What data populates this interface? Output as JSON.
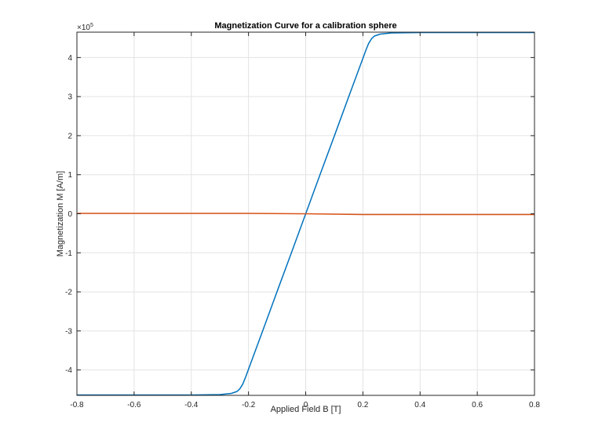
{
  "chart_data": {
    "type": "line",
    "title": "Magnetization Curve for a calibration sphere",
    "xlabel": "Applied Field B [T]",
    "ylabel": "Magnetization M [A/m]",
    "xlim": [
      -0.8,
      0.8
    ],
    "ylim": [
      -4.65,
      4.65
    ],
    "y_exponent_label": "×10",
    "y_exponent_power": "5",
    "grid": true,
    "xticks": [
      -0.8,
      -0.6,
      -0.4,
      -0.2,
      0,
      0.2,
      0.4,
      0.6,
      0.8
    ],
    "xtick_labels": [
      "-0.8",
      "-0.6",
      "-0.4",
      "-0.2",
      "0",
      "0.2",
      "0.4",
      "0.6",
      "0.8"
    ],
    "yticks": [
      -4,
      -3,
      -2,
      -1,
      0,
      1,
      2,
      3,
      4
    ],
    "ytick_labels": [
      "-4",
      "-3",
      "-2",
      "-1",
      "0",
      "1",
      "2",
      "3",
      "4"
    ],
    "series": [
      {
        "color": "#0072bd",
        "x": [
          -0.8,
          -0.4,
          -0.3,
          -0.26,
          -0.24,
          -0.23,
          -0.22,
          -0.21,
          -0.2,
          -0.15,
          -0.1,
          -0.05,
          0,
          0.05,
          0.1,
          0.15,
          0.2,
          0.21,
          0.22,
          0.23,
          0.24,
          0.26,
          0.3,
          0.4,
          0.8
        ],
        "y": [
          -4.64,
          -4.64,
          -4.63,
          -4.6,
          -4.55,
          -4.48,
          -4.36,
          -4.18,
          -3.98,
          -2.99,
          -1.99,
          -1.0,
          0,
          1.0,
          1.99,
          2.99,
          3.98,
          4.18,
          4.36,
          4.48,
          4.55,
          4.6,
          4.63,
          4.64,
          4.64
        ]
      },
      {
        "color": "#d95319",
        "x": [
          -0.8,
          -0.2,
          0,
          0.2,
          0.8
        ],
        "y": [
          0.01,
          0.01,
          0,
          -0.02,
          -0.02
        ]
      }
    ]
  }
}
